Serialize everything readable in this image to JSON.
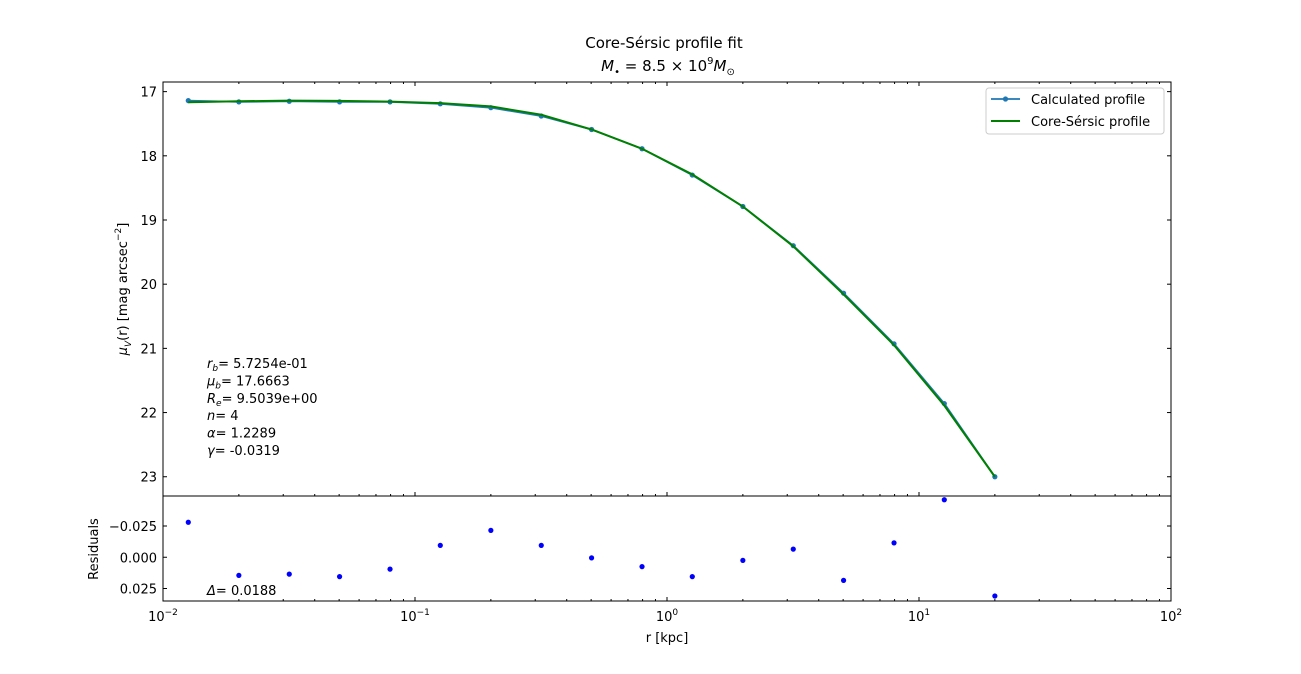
{
  "chart_data": [
    {
      "type": "line",
      "title": "Core-Sérsic profile fit",
      "subtitle": "M• = 8.5 × 10⁹ M⊙",
      "subtitle_parts": {
        "main": "M",
        "sub_dot": "•",
        "eq": " = 8.5 × 10",
        "exp": "9",
        "main2": "M",
        "sub_sun": "⊙"
      },
      "xlabel": "r [kpc]",
      "ylabel": "μV(r) [mag arcsec−2]",
      "ylabel_parts": {
        "mu": "μ",
        "sub": "V",
        "rest": "(r) [mag arcsec",
        "exp": "−2",
        "close": "]"
      },
      "x_scale": "log",
      "xlim": [
        0.01,
        100
      ],
      "ylim": [
        23.3,
        16.85
      ],
      "y_inverted": true,
      "yticks": [
        17,
        18,
        19,
        20,
        21,
        22,
        23
      ],
      "grid": false,
      "legend_position": "top-right",
      "series": [
        {
          "name": "Calculated profile",
          "color": "#1f77b4",
          "marker": "circle",
          "x": [
            0.0126,
            0.02,
            0.0317,
            0.0502,
            0.0796,
            0.126,
            0.2,
            0.317,
            0.502,
            0.796,
            1.26,
            2.0,
            3.17,
            5.02,
            7.96,
            12.6,
            20.0
          ],
          "y": [
            17.14,
            17.16,
            17.15,
            17.16,
            17.16,
            17.19,
            17.25,
            17.38,
            17.59,
            17.89,
            18.3,
            18.79,
            19.4,
            20.14,
            20.93,
            21.86,
            23.0
          ]
        },
        {
          "name": "Core-Sérsic profile",
          "color": "#008000",
          "marker": "none",
          "x": [
            0.0126,
            0.02,
            0.0317,
            0.0502,
            0.0796,
            0.126,
            0.2,
            0.317,
            0.502,
            0.796,
            1.26,
            2.0,
            3.17,
            5.02,
            7.96,
            12.6,
            20.0
          ],
          "y": [
            17.165,
            17.15,
            17.14,
            17.145,
            17.155,
            17.18,
            17.23,
            17.36,
            17.59,
            17.89,
            18.29,
            18.79,
            19.41,
            20.16,
            20.95,
            21.89,
            23.0
          ]
        }
      ],
      "annotations": [
        {
          "sym": "r",
          "sub": "b",
          "value": "5.7254e-01"
        },
        {
          "sym": "μ",
          "sub": "b",
          "value": "17.6663"
        },
        {
          "sym": "R",
          "sub": "e",
          "value": "9.5039e+00"
        },
        {
          "sym": "n",
          "sub": "",
          "value": "4"
        },
        {
          "sym": "α",
          "sub": "",
          "value": "1.2289"
        },
        {
          "sym": "γ",
          "sub": "",
          "value": "-0.0319"
        }
      ]
    },
    {
      "type": "scatter",
      "ylabel": "Residuals",
      "xlabel": "r [kpc]",
      "x_scale": "log",
      "xlim": [
        0.01,
        100
      ],
      "ylim": [
        0.035,
        -0.049
      ],
      "y_inverted": true,
      "yticks": [
        -0.025,
        0.0,
        0.025
      ],
      "ytick_labels": [
        "−0.025",
        "0.000",
        "0.025"
      ],
      "xticks": [
        0.01,
        0.1,
        1,
        10,
        100
      ],
      "xtick_labels": [
        {
          "base": "10",
          "exp": "−2"
        },
        {
          "base": "10",
          "exp": "−1"
        },
        {
          "base": "10",
          "exp": "0"
        },
        {
          "base": "10",
          "exp": "1"
        },
        {
          "base": "10",
          "exp": "2"
        }
      ],
      "series": [
        {
          "color": "#0000ff",
          "x": [
            0.0126,
            0.02,
            0.0317,
            0.0502,
            0.0796,
            0.126,
            0.2,
            0.317,
            0.502,
            0.796,
            1.26,
            2.0,
            3.17,
            5.02,
            7.96,
            12.6,
            20.0
          ],
          "y": [
            -0.028,
            0.0145,
            0.0135,
            0.0155,
            0.0095,
            -0.0095,
            -0.0215,
            -0.0095,
            0.0005,
            0.0075,
            0.0155,
            0.0025,
            -0.0065,
            0.0185,
            -0.0115,
            -0.046,
            0.031
          ]
        }
      ],
      "annotation": {
        "sym": "Δ",
        "value": "0.0188"
      }
    }
  ]
}
